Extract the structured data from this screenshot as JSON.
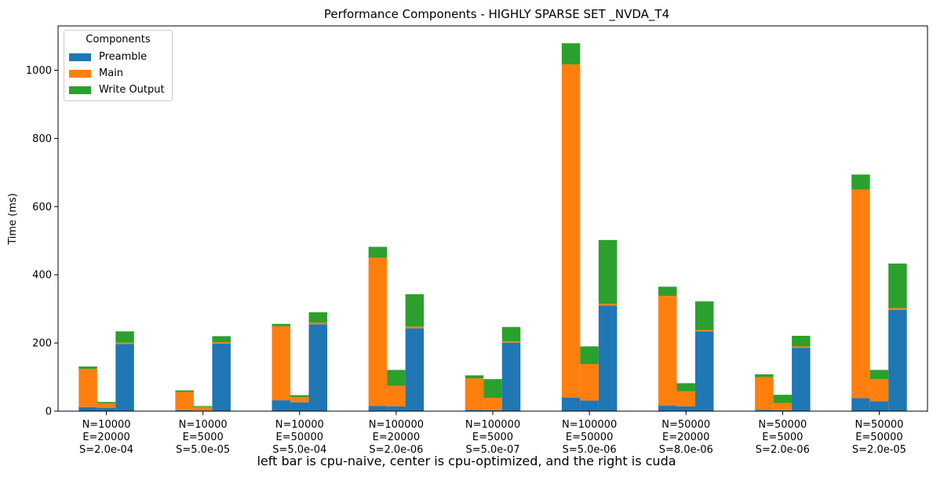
{
  "caption": "left bar is cpu-naive, center is cpu-optimized, and the right is cuda",
  "legend": {
    "title": "Components",
    "items": [
      {
        "label": "Preamble",
        "color": "#1f77b4"
      },
      {
        "label": "Main",
        "color": "#ff7f0e"
      },
      {
        "label": "Write Output",
        "color": "#2ca02c"
      }
    ],
    "placement": "top-left"
  },
  "chart_data": {
    "type": "bar",
    "stacked": true,
    "title": "Performance Components - HIGHLY SPARSE SET _NVDA_T4",
    "xlabel": "",
    "ylabel": "Time (ms)",
    "ylim": [
      0,
      1130
    ],
    "yticks": [
      0,
      200,
      400,
      600,
      800,
      1000
    ],
    "grid": false,
    "categories": [
      [
        "N=10000",
        "E=20000",
        "S=2.0e-04"
      ],
      [
        "N=10000",
        "E=5000",
        "S=5.0e-05"
      ],
      [
        "N=10000",
        "E=50000",
        "S=5.0e-04"
      ],
      [
        "N=100000",
        "E=20000",
        "S=2.0e-06"
      ],
      [
        "N=100000",
        "E=5000",
        "S=5.0e-07"
      ],
      [
        "N=100000",
        "E=50000",
        "S=5.0e-06"
      ],
      [
        "N=50000",
        "E=20000",
        "S=8.0e-06"
      ],
      [
        "N=50000",
        "E=5000",
        "S=2.0e-06"
      ],
      [
        "N=50000",
        "E=50000",
        "S=2.0e-05"
      ]
    ],
    "bar_groups": [
      "cpu-naive",
      "cpu-optimized",
      "cuda"
    ],
    "series": [
      {
        "name": "Preamble",
        "color": "#1f77b4",
        "values": [
          [
            12,
            10,
            197
          ],
          [
            3,
            2,
            198
          ],
          [
            32,
            26,
            255
          ],
          [
            15,
            14,
            243
          ],
          [
            4,
            3,
            201
          ],
          [
            40,
            31,
            310
          ],
          [
            16,
            14,
            234
          ],
          [
            4,
            3,
            186
          ],
          [
            38,
            29,
            297
          ]
        ]
      },
      {
        "name": "Main",
        "color": "#ff7f0e",
        "values": [
          [
            112,
            13,
            4
          ],
          [
            53,
            10,
            4
          ],
          [
            217,
            15,
            5
          ],
          [
            435,
            60,
            5
          ],
          [
            92,
            36,
            4
          ],
          [
            977,
            107,
            5
          ],
          [
            322,
            44,
            4
          ],
          [
            96,
            21,
            4
          ],
          [
            612,
            65,
            5
          ]
        ]
      },
      {
        "name": "Write Output",
        "color": "#2ca02c",
        "values": [
          [
            7,
            4,
            33
          ],
          [
            5,
            3,
            18
          ],
          [
            7,
            6,
            30
          ],
          [
            32,
            47,
            95
          ],
          [
            9,
            55,
            42
          ],
          [
            62,
            52,
            187
          ],
          [
            27,
            24,
            84
          ],
          [
            8,
            24,
            31
          ],
          [
            44,
            27,
            131
          ]
        ]
      }
    ]
  }
}
